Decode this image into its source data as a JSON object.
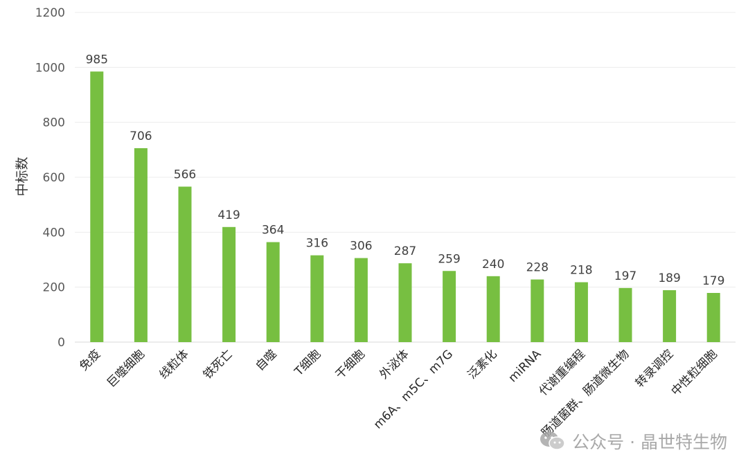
{
  "chart_data": {
    "type": "bar",
    "ylabel": "中标数",
    "xlabel": "",
    "title": "",
    "ylim": [
      0,
      1200
    ],
    "yticks": [
      0,
      200,
      400,
      600,
      800,
      1000,
      1200
    ],
    "grid": true,
    "legend": "none",
    "bar_color": "#77bf41",
    "categories": [
      "免疫",
      "巨噬细胞",
      "线粒体",
      "铁死亡",
      "自噬",
      "T细胞",
      "干细胞",
      "外泌体",
      "m6A、m5C、m7G",
      "泛素化",
      "miRNA",
      "代谢重编程",
      "肠道菌群、肠道微生物",
      "转录调控",
      "中性粒细胞"
    ],
    "values": [
      985,
      706,
      566,
      419,
      364,
      316,
      306,
      287,
      259,
      240,
      228,
      218,
      197,
      189,
      179
    ]
  },
  "watermark": {
    "text": "公众号 · 晶世特生物",
    "icon": "wechat-icon"
  }
}
